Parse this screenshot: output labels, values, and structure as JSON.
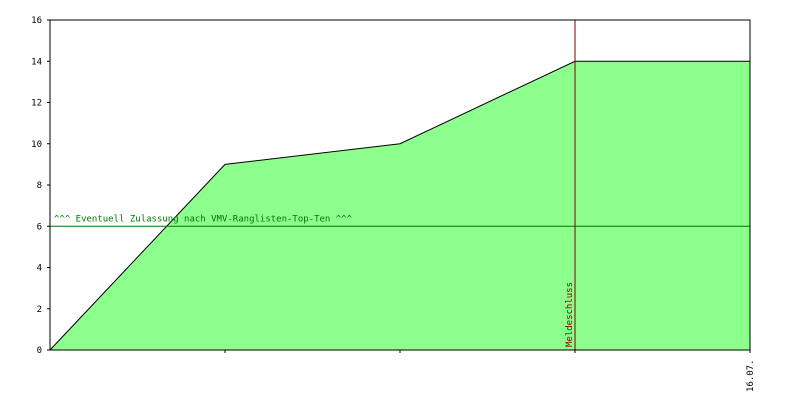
{
  "chart_data": {
    "type": "area",
    "categories": [
      null,
      null,
      null,
      null,
      "16.07."
    ],
    "values": [
      0,
      9,
      10,
      14,
      14
    ],
    "color": "#8cff8c",
    "line_color": "#000000",
    "ylim": [
      0,
      16
    ],
    "yticks": [
      0,
      2,
      4,
      6,
      8,
      10,
      12,
      14,
      16
    ],
    "hline": {
      "value": 6,
      "label": "^^^ Eventuell Zulassung nach VMV-Ranglisten-Top-Ten ^^^",
      "color": "#007700"
    },
    "vline": {
      "index": 3,
      "label": "Meldeschluss",
      "color": "#800000"
    }
  }
}
